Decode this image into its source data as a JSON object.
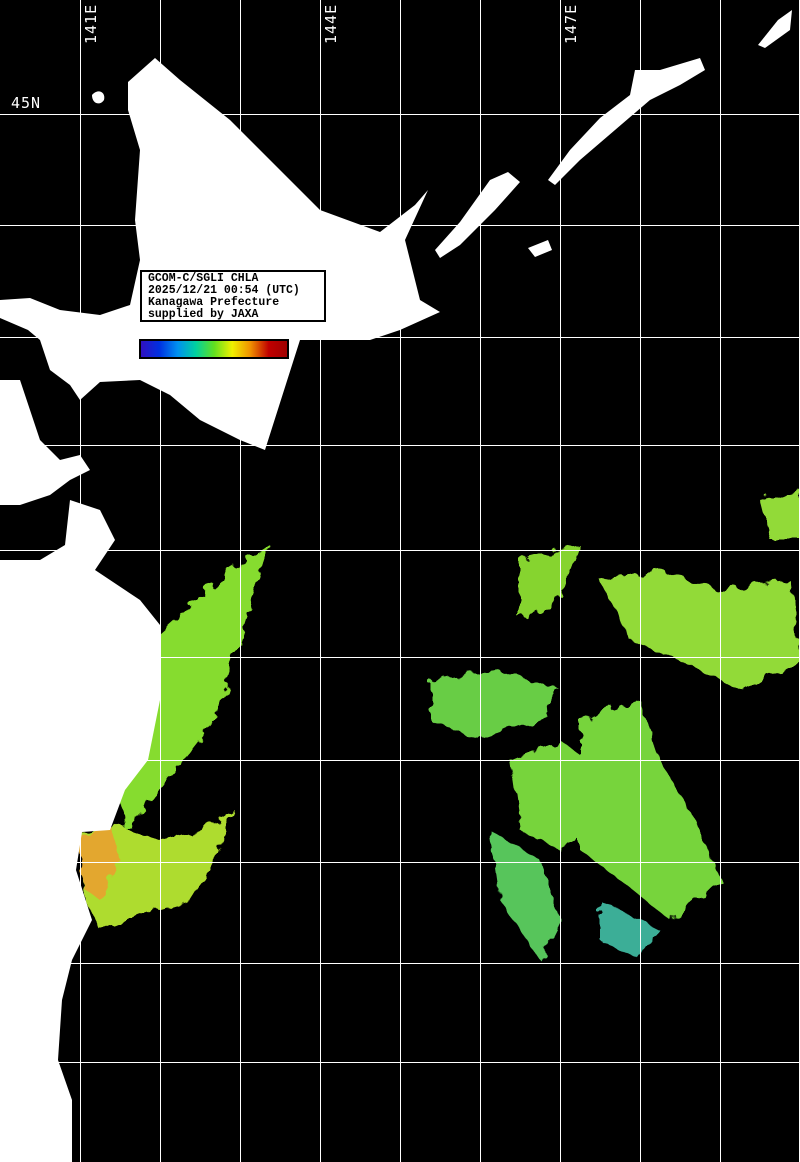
{
  "map": {
    "longitude_labels": [
      "141E",
      "144E",
      "147E"
    ],
    "latitude_labels": [
      "45N"
    ],
    "info": {
      "line1": "GCOM-C/SGLI CHLA",
      "line2": "2025/12/21 00:54 (UTC)",
      "line3": "Kanagawa Prefecture",
      "line4": "supplied by JAXA"
    },
    "colorbar": {
      "colors": [
        "#3010c0",
        "#0030e0",
        "#0090f0",
        "#00d0a0",
        "#60e020",
        "#f0f000",
        "#f09000",
        "#c00000",
        "#a00000"
      ]
    },
    "colors": {
      "land": "#ffffff",
      "ocean_nodata": "#000000",
      "grid": "#ffffff"
    }
  }
}
